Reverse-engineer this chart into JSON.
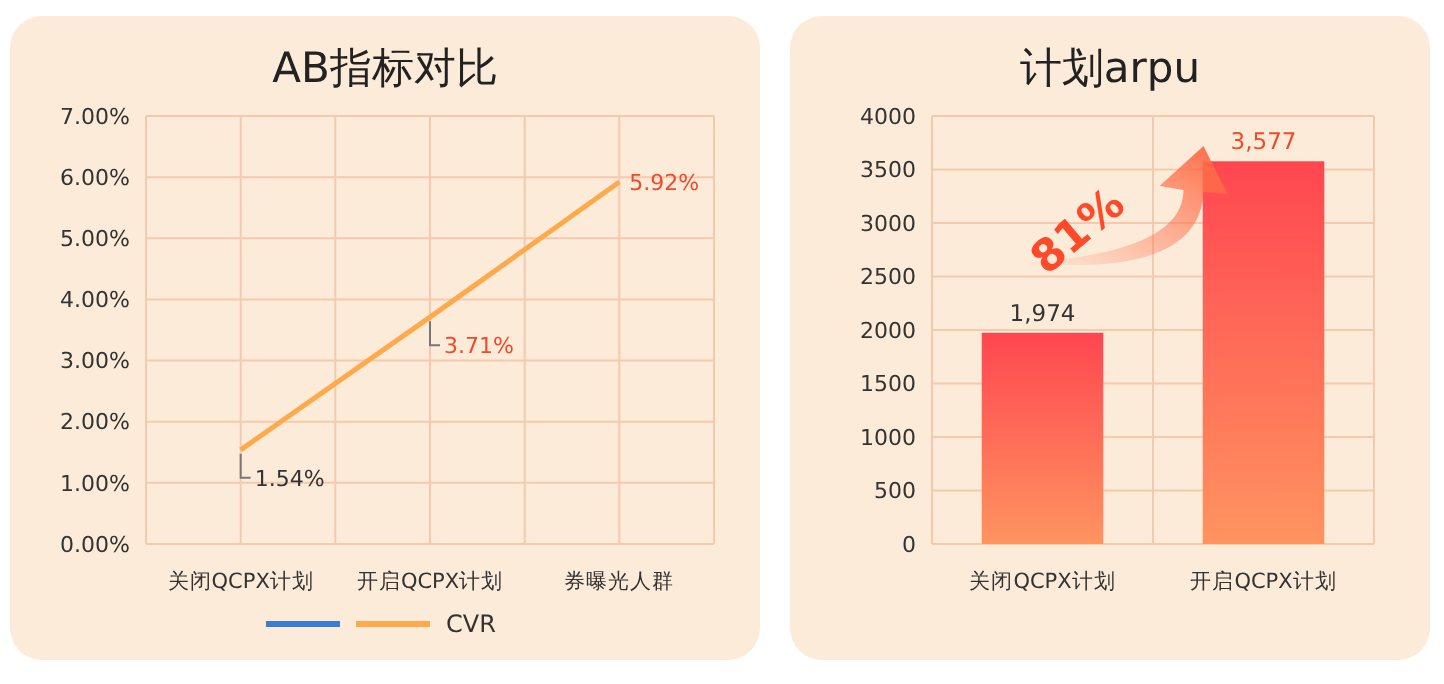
{
  "chart_data": [
    {
      "type": "line",
      "title": "AB指标对比",
      "categories": [
        "关闭QCPX计划",
        "开启QCPX计划",
        "券曝光人群"
      ],
      "series": [
        {
          "color": "#3a7bd5",
          "values": [
            null,
            null,
            null
          ]
        },
        {
          "name": "CVR",
          "color": "#ffa94d",
          "values": [
            1.54,
            3.71,
            5.92
          ],
          "value_labels": [
            "1.54%",
            "3.71%",
            "5.92%"
          ]
        }
      ],
      "ylim": [
        0,
        7
      ],
      "yticks": [
        {
          "value": 0,
          "label": "0.00%"
        },
        {
          "value": 1,
          "label": "1.00%"
        },
        {
          "value": 2,
          "label": "2.00%"
        },
        {
          "value": 3,
          "label": "3.00%"
        },
        {
          "value": 4,
          "label": "4.00%"
        },
        {
          "value": 5,
          "label": "5.00%"
        },
        {
          "value": 6,
          "label": "6.00%"
        },
        {
          "value": 7,
          "label": "7.00%"
        }
      ],
      "grid": true,
      "legend": "bottom",
      "marker": "none",
      "line_style": "solid"
    },
    {
      "type": "bar",
      "title": "计划arpu",
      "categories": [
        "关闭QCPX计划",
        "开启QCPX计划"
      ],
      "values": [
        1974,
        3577
      ],
      "value_labels": [
        "1,974",
        "3,577"
      ],
      "color": "#ff4650",
      "ylim": [
        0,
        4000
      ],
      "yticks": [
        0,
        500,
        1000,
        1500,
        2000,
        2500,
        3000,
        3500,
        4000
      ],
      "grid": true,
      "annotations": [
        "81%"
      ]
    }
  ]
}
